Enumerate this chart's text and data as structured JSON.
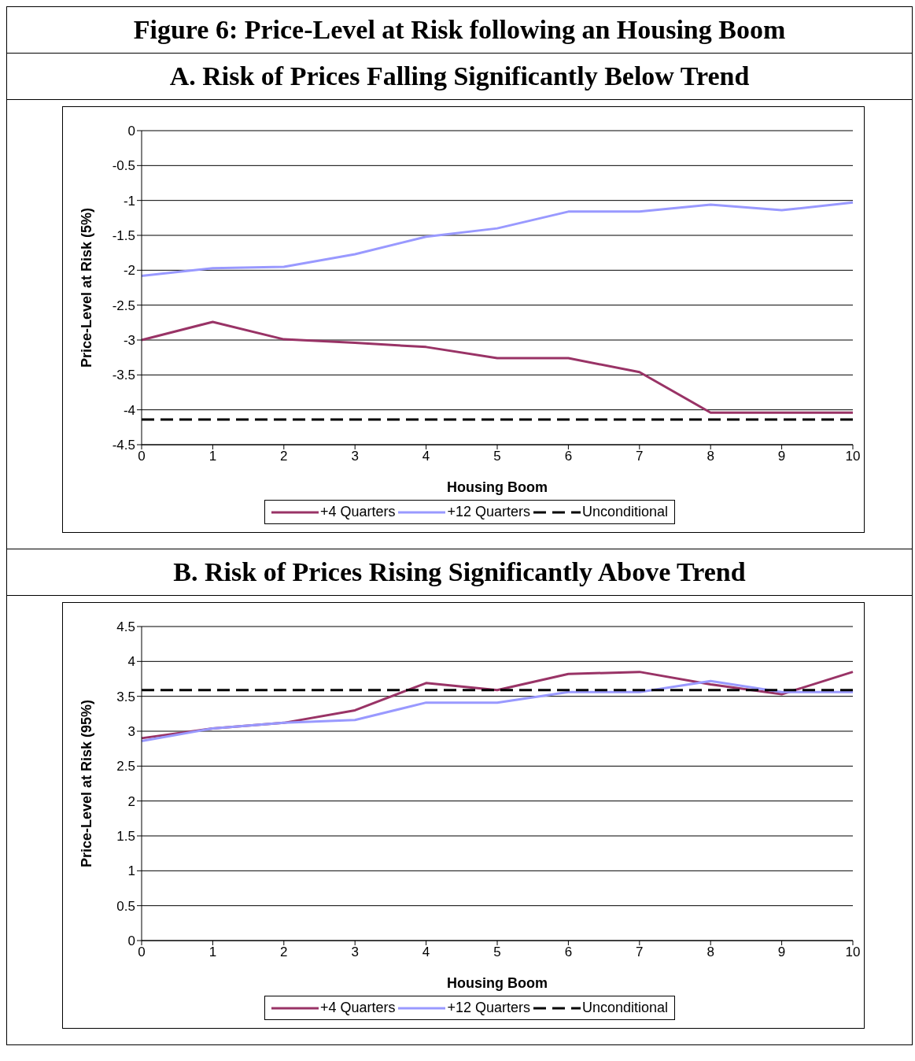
{
  "chart_data": [
    {
      "type": "line",
      "title": "Figure 6: Price-Level at Risk following an Housing Boom",
      "subtitle": "A. Risk of Prices Falling Significantly Below Trend",
      "xlabel": "Housing Boom",
      "ylabel": "Price-Level at Risk (5%)",
      "categories": [
        "0",
        "1",
        "2",
        "3",
        "4",
        "5",
        "6",
        "7",
        "8",
        "9",
        "10"
      ],
      "ylim": [
        -4.5,
        0
      ],
      "yticks": [
        -4.5,
        -4,
        -3.5,
        -3,
        -2.5,
        -2,
        -1.5,
        -1,
        -0.5,
        0
      ],
      "grid": "y",
      "legend": "bottom",
      "series": [
        {
          "name": "+4 Quarters",
          "color": "#993366",
          "values": [
            -3.0,
            -2.74,
            -2.99,
            -3.04,
            -3.1,
            -3.26,
            -3.26,
            -3.46,
            -4.04,
            -4.04,
            -4.04
          ]
        },
        {
          "name": "+12 Quarters",
          "color": "#9999ff",
          "values": [
            -2.08,
            -1.97,
            -1.95,
            -1.77,
            -1.52,
            -1.4,
            -1.16,
            -1.16,
            -1.06,
            -1.14,
            -1.03
          ]
        },
        {
          "name": "Unconditional",
          "color": "#000000",
          "line_style": "dashed",
          "values": [
            -4.14,
            -4.14,
            -4.14,
            -4.14,
            -4.14,
            -4.14,
            -4.14,
            -4.14,
            -4.14,
            -4.14,
            -4.14
          ]
        }
      ]
    },
    {
      "type": "line",
      "title": "B. Risk of Prices Rising Significantly Above Trend",
      "xlabel": "Housing Boom",
      "ylabel": "Price-Level at Risk (95%)",
      "categories": [
        "0",
        "1",
        "2",
        "3",
        "4",
        "5",
        "6",
        "7",
        "8",
        "9",
        "10"
      ],
      "ylim": [
        0,
        4.5
      ],
      "yticks": [
        0,
        0.5,
        1,
        1.5,
        2,
        2.5,
        3,
        3.5,
        4,
        4.5
      ],
      "grid": "y",
      "legend": "bottom",
      "series": [
        {
          "name": "+4 Quarters",
          "color": "#993366",
          "values": [
            2.9,
            3.04,
            3.12,
            3.3,
            3.69,
            3.59,
            3.82,
            3.85,
            3.67,
            3.53,
            3.85
          ]
        },
        {
          "name": "+12 Quarters",
          "color": "#9999ff",
          "values": [
            2.86,
            3.04,
            3.12,
            3.16,
            3.41,
            3.41,
            3.56,
            3.56,
            3.72,
            3.56,
            3.56
          ]
        },
        {
          "name": "Unconditional",
          "color": "#000000",
          "line_style": "dashed",
          "values": [
            3.59,
            3.59,
            3.59,
            3.59,
            3.59,
            3.59,
            3.59,
            3.59,
            3.59,
            3.59,
            3.59
          ]
        }
      ]
    }
  ]
}
